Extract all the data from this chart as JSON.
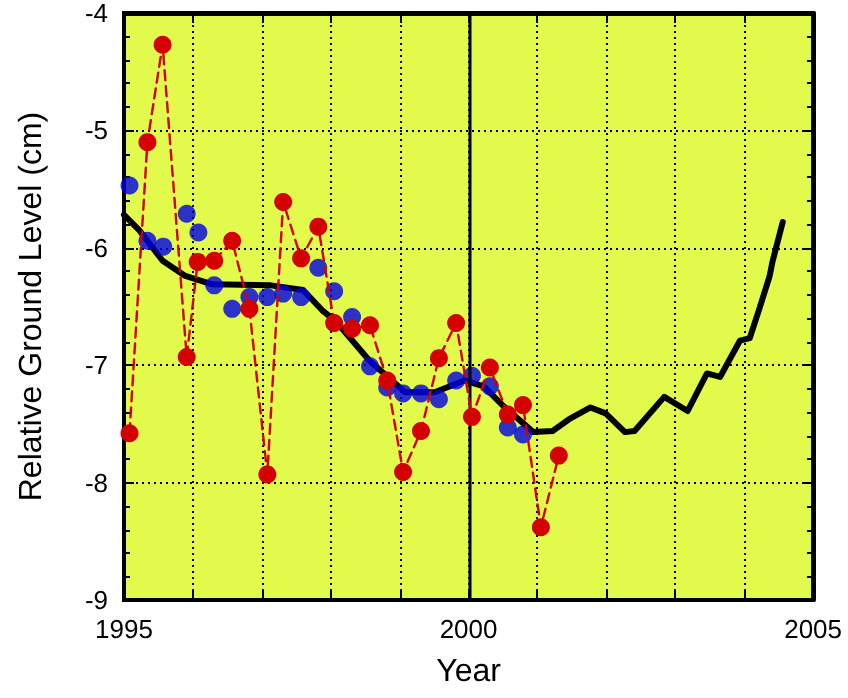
{
  "chart_data": {
    "type": "line",
    "xlabel": "Year",
    "ylabel": "Relative Ground Level (cm)",
    "xlim": [
      1995,
      2005
    ],
    "xticks": [
      1995,
      {
        "value": 1996,
        "label": null
      },
      {
        "value": 1997,
        "label": null
      },
      {
        "value": 1998,
        "label": null
      },
      {
        "value": 1999,
        "label": null
      },
      2000,
      {
        "value": 2001,
        "label": null
      },
      {
        "value": 2002,
        "label": null
      },
      {
        "value": 2003,
        "label": null
      },
      {
        "value": 2004,
        "label": null
      },
      2005
    ],
    "ylim": [
      -9,
      -4
    ],
    "yticks": [
      -9,
      -8,
      -7,
      -6,
      -5,
      -4
    ],
    "grid": true,
    "ref_lines": [
      {
        "axis": "x",
        "value": 2000,
        "color": "#000000",
        "line_style": "solid"
      }
    ],
    "series": [
      {
        "color": "#d40000",
        "marker": "circle",
        "line_style": "dashed",
        "x": [
          1995.08,
          1995.34,
          1995.56,
          1995.91,
          1996.07,
          1996.31,
          1996.57,
          1996.82,
          1997.08,
          1997.31,
          1997.57,
          1997.82,
          1998.05,
          1998.31,
          1998.57,
          1998.82,
          1999.05,
          1999.31,
          1999.57,
          1999.82,
          2000.05,
          2000.31,
          2000.57,
          2000.79,
          2001.05,
          2001.31
        ],
        "values": [
          -7.58,
          -5.1,
          -4.27,
          -6.93,
          -6.12,
          -6.11,
          -5.94,
          -6.52,
          -7.93,
          -5.61,
          -6.09,
          -5.82,
          -6.64,
          -6.69,
          -6.66,
          -7.13,
          -7.91,
          -7.56,
          -6.94,
          -6.64,
          -7.44,
          -7.02,
          -7.42,
          -7.34,
          -8.38,
          -7.77
        ]
      },
      {
        "type": "scatter",
        "color": "#0000e6",
        "marker": "circle",
        "x": [
          1995.08,
          1995.34,
          1995.57,
          1995.91,
          1996.08,
          1996.31,
          1996.57,
          1996.82,
          1997.08,
          1997.31,
          1997.57,
          1997.82,
          1998.05,
          1998.31,
          1998.57,
          1998.82,
          1999.05,
          1999.31,
          1999.57,
          1999.82,
          2000.05,
          2000.31,
          2000.57,
          2000.79
        ],
        "values": [
          -5.47,
          -5.94,
          -5.99,
          -5.71,
          -5.87,
          -6.32,
          -6.52,
          -6.42,
          -6.42,
          -6.39,
          -6.42,
          -6.17,
          -6.37,
          -6.59,
          -7.01,
          -7.19,
          -7.24,
          -7.24,
          -7.29,
          -7.13,
          -7.09,
          -7.18,
          -7.53,
          -7.59
        ]
      },
      {
        "color": "#000000",
        "marker": "none",
        "line_style": "solid",
        "x": [
          1995.0,
          1995.22,
          1995.56,
          1995.89,
          1996.27,
          1997.13,
          1997.6,
          1997.89,
          1998.08,
          1998.56,
          1999.08,
          1999.51,
          1999.94,
          2000.22,
          2000.51,
          2000.94,
          2001.22,
          2001.46,
          2001.77,
          2001.99,
          2002.27,
          2002.41,
          2002.84,
          2003.18,
          2003.46,
          2003.65,
          2003.94,
          2004.08,
          2004.22,
          2004.37,
          2004.41,
          2004.56
        ],
        "values": [
          -5.72,
          -5.85,
          -6.11,
          -6.24,
          -6.31,
          -6.32,
          -6.36,
          -6.54,
          -6.63,
          -6.96,
          -7.23,
          -7.23,
          -7.13,
          -7.18,
          -7.35,
          -7.57,
          -7.56,
          -7.46,
          -7.36,
          -7.41,
          -7.57,
          -7.56,
          -7.27,
          -7.39,
          -7.07,
          -7.1,
          -6.79,
          -6.77,
          -6.52,
          -6.24,
          -6.12,
          -5.78
        ]
      }
    ]
  }
}
